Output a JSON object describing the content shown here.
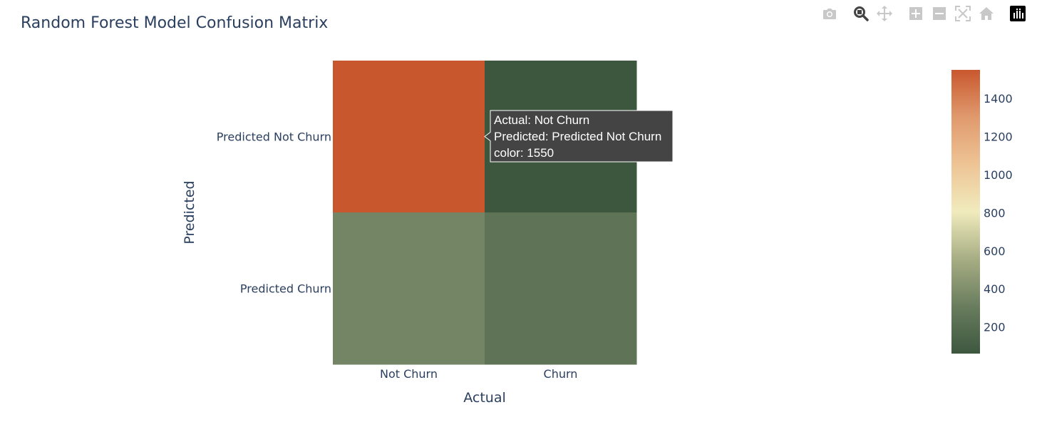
{
  "chart_data": {
    "type": "heatmap",
    "title": "Random Forest Model Confusion Matrix",
    "xlabel": "Actual",
    "ylabel": "Predicted",
    "x": [
      "Not Churn",
      "Churn"
    ],
    "y": [
      "Predicted Not Churn",
      "Predicted Churn"
    ],
    "z": [
      [
        1550,
        60
      ],
      [
        350,
        250
      ]
    ],
    "colorscale": [
      "#3d573f",
      "#697d5e",
      "#a7ad83",
      "#f0ebbd",
      "#eec495",
      "#e09a6d",
      "#c9572e"
    ],
    "colorbar": {
      "range": [
        60,
        1550
      ],
      "ticks": [
        200,
        400,
        600,
        800,
        1000,
        1200,
        1400
      ]
    }
  },
  "hover": {
    "line1": "Actual: Not Churn",
    "line2": "Predicted: Predicted Not Churn",
    "line3": "color: 1550"
  },
  "modebar": [
    {
      "name": "download-plot-icon"
    },
    {
      "name": "zoom-icon"
    },
    {
      "name": "pan-icon"
    },
    {
      "name": "zoom-in-icon"
    },
    {
      "name": "zoom-out-icon"
    },
    {
      "name": "autoscale-icon"
    },
    {
      "name": "reset-axes-icon"
    },
    {
      "name": "plotly-logo-icon"
    }
  ]
}
